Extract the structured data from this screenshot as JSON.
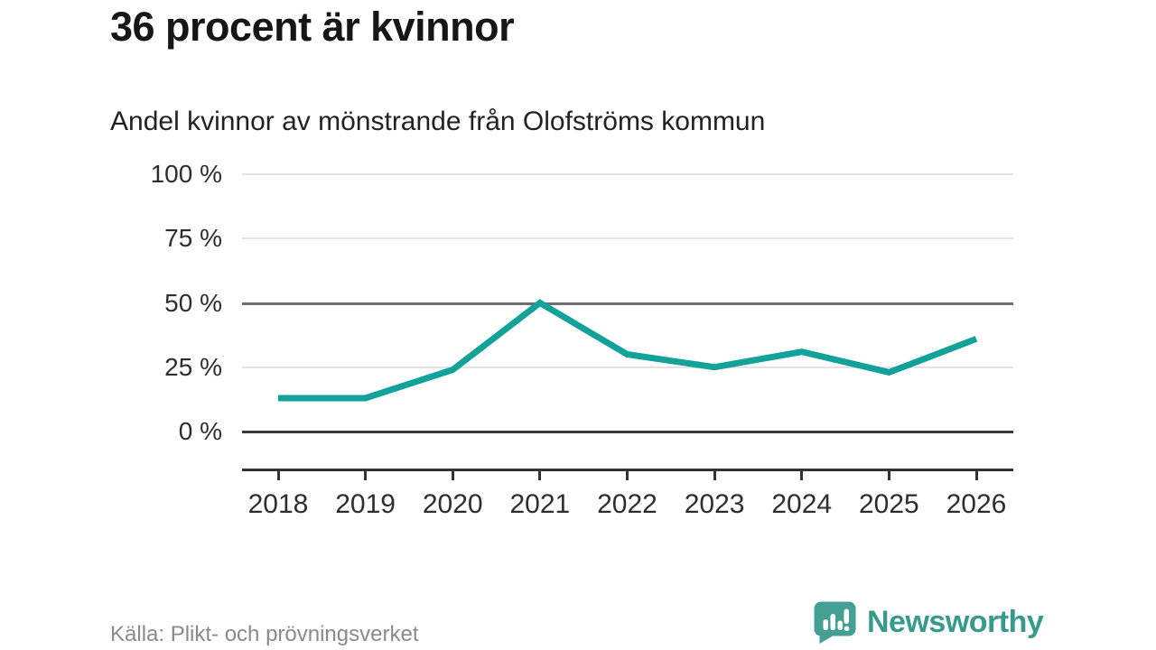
{
  "title": "36 procent är kvinnor",
  "subtitle": "Andel kvinnor av mönstrande från Olofströms kommun",
  "footer": {
    "source": "Källa: Plikt- och prövningsverket",
    "brand": "Newsworthy"
  },
  "colors": {
    "line": "#12a29a",
    "brand_teal": "#45a094",
    "brand_text": "#379a8b",
    "grid_light": "#e3e3e3",
    "grid_mid": "#6f6f6f",
    "grid_dark": "#3b3b3b",
    "axis": "#333333",
    "text_dark": "#2e2e2e",
    "text_gray": "#8a8a8a"
  },
  "chart_data": {
    "type": "line",
    "title": "36 procent är kvinnor",
    "subtitle": "Andel kvinnor av mönstrande från Olofströms kommun",
    "categories": [
      "2018",
      "2019",
      "2020",
      "2021",
      "2022",
      "2023",
      "2024",
      "2025",
      "2026"
    ],
    "values": [
      13,
      13,
      24,
      50,
      30,
      25,
      31,
      23,
      36
    ],
    "unit": "%",
    "xlabel": "",
    "ylabel": "",
    "ylim": [
      0,
      100
    ],
    "grid": true,
    "legend": false,
    "yticks": [
      {
        "value": 100,
        "label": "100 %",
        "emphasis": "light"
      },
      {
        "value": 75,
        "label": "75 %",
        "emphasis": "light"
      },
      {
        "value": 50,
        "label": "50 %",
        "emphasis": "mid"
      },
      {
        "value": 25,
        "label": "25 %",
        "emphasis": "light"
      },
      {
        "value": 0,
        "label": "0 %",
        "emphasis": "dark"
      }
    ]
  }
}
